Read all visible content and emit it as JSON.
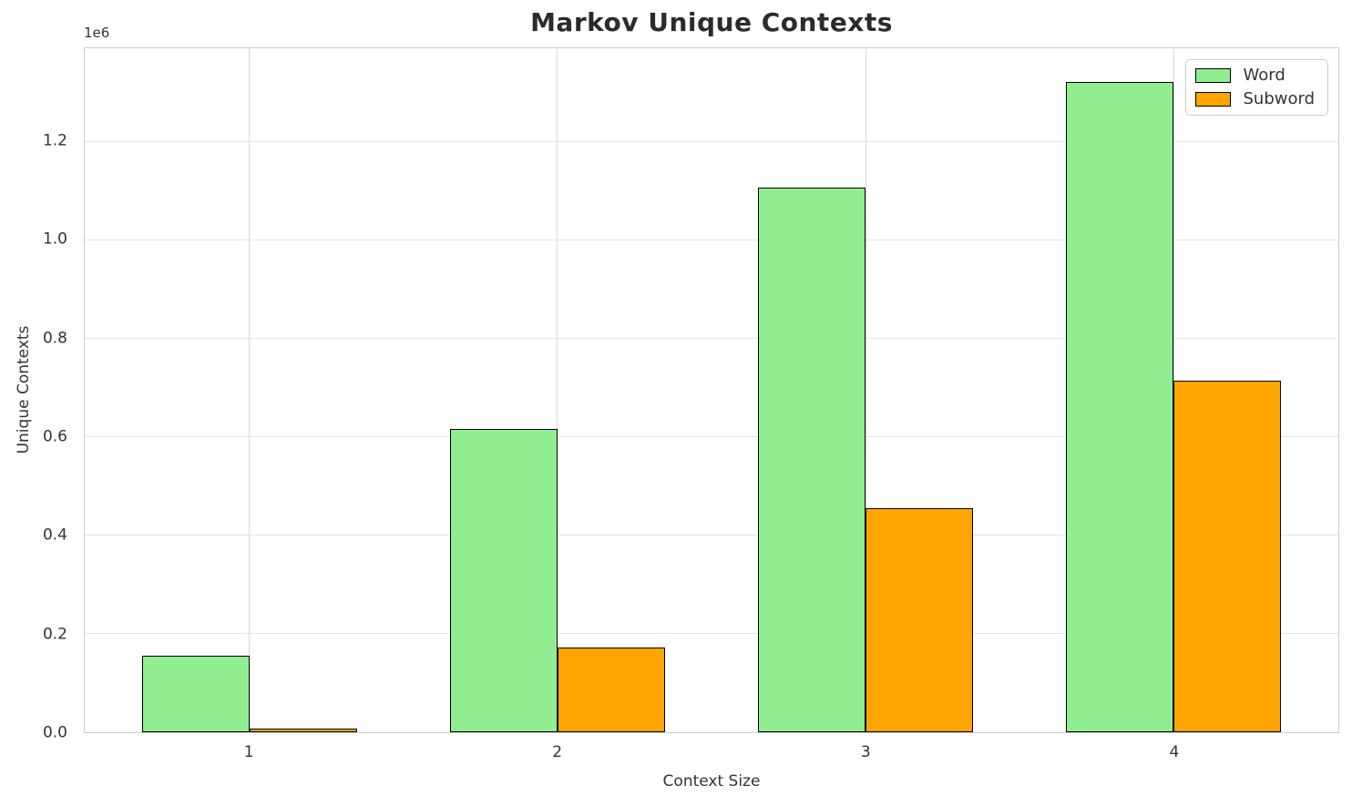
{
  "title": "Markov Unique Contexts",
  "offset_text": "1e6",
  "x_axis_label": "Context Size",
  "y_axis_label": "Unique Contexts",
  "legend": {
    "position": "upper right",
    "items": [
      {
        "label": "Word",
        "color": "#90EE90"
      },
      {
        "label": "Subword",
        "color": "#FFA500"
      }
    ]
  },
  "colors": {
    "word_bar": "#90EE90",
    "subword_bar": "#FFA500",
    "bar_edge": "#000000",
    "grid": "#e6e6e6",
    "spine": "#cccccc",
    "text": "#333333",
    "title_text": "#2b2b2b",
    "background": "#ffffff"
  },
  "chart_data": {
    "type": "bar",
    "title": "Markov Unique Contexts",
    "xlabel": "Context Size",
    "ylabel": "Unique Contexts",
    "y_offset_multiplier": "1e6",
    "categories": [
      "1",
      "2",
      "3",
      "4"
    ],
    "x_positions": [
      1,
      2,
      3,
      4
    ],
    "series": [
      {
        "name": "Word",
        "color": "#90EE90",
        "values": [
          156000,
          616000,
          1107000,
          1322000
        ]
      },
      {
        "name": "Subword",
        "color": "#FFA500",
        "values": [
          8000,
          173000,
          456000,
          715000
        ]
      }
    ],
    "bar_width": 0.35,
    "xlim": [
      0.465,
      4.535
    ],
    "ylim": [
      0,
      1390000
    ],
    "yticks": [
      0,
      200000,
      400000,
      600000,
      800000,
      1000000,
      1200000
    ],
    "ytick_labels": [
      "0.0",
      "0.2",
      "0.4",
      "0.6",
      "0.8",
      "1.0",
      "1.2"
    ],
    "grid": true,
    "legend_position": "upper right"
  }
}
